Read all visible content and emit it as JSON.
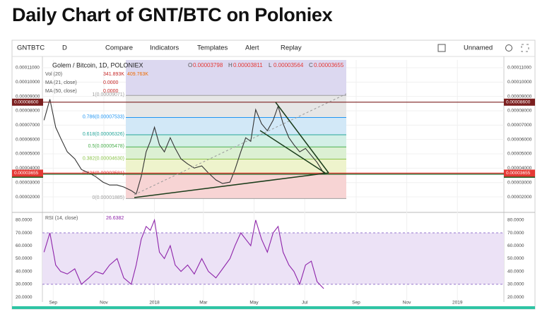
{
  "title": "Daily Chart of GNT/BTC on Poloniex",
  "toolbar": {
    "symbol": "GNTBTC",
    "interval": "D",
    "buttons": [
      "Compare",
      "Indicators",
      "Templates",
      "Alert",
      "Replay"
    ],
    "layout": "Unnamed"
  },
  "legend": {
    "name": "Golem / Bitcoin, 1D, POLONIEX",
    "ohlc": [
      {
        "label": "O",
        "value": "0.00003798"
      },
      {
        "label": "H",
        "value": "0.00003811"
      },
      {
        "label": "L",
        "value": "0.00003564"
      },
      {
        "label": "C",
        "value": "0.00003655"
      }
    ],
    "studies": [
      {
        "label": "Vol (20)",
        "values": [
          "341.893K",
          "409.763K"
        ]
      },
      {
        "label": "MA (21, close)",
        "values": [
          "0.0000"
        ]
      },
      {
        "label": "MA (50, close)",
        "values": [
          "0.0000"
        ]
      }
    ]
  },
  "chart_data": [
    {
      "type": "line",
      "x": [
        -11,
        -4,
        3,
        9,
        17,
        26,
        34,
        43,
        51,
        60,
        68,
        77,
        85,
        94,
        100,
        106,
        112,
        117,
        122,
        128,
        134,
        141,
        147,
        154,
        162,
        170,
        179,
        187,
        196,
        204,
        213,
        219,
        226,
        232,
        238,
        244,
        251,
        258,
        265,
        271,
        277,
        284,
        290,
        297,
        304,
        311,
        318,
        326
      ],
      "series": [
        {
          "name": "Golem / Bitcoin, 1D, POLONIEX",
          "color": "#333333",
          "values": [
            7.34e-05,
            8.8e-05,
            6.85e-05,
            6.1e-05,
            5.14e-05,
            4.65e-05,
            3.91e-05,
            3.67e-05,
            3.42e-05,
            3.03e-05,
            2.83e-05,
            2.83e-05,
            2.69e-05,
            2.44e-05,
            2.2e-05,
            3.42e-05,
            5.14e-05,
            5.87e-05,
            6.85e-05,
            5.63e-05,
            5.14e-05,
            6.12e-05,
            5.38e-05,
            4.65e-05,
            4.3e-05,
            4.01e-05,
            4.16e-05,
            3.67e-05,
            3.18e-05,
            2.93e-05,
            3.03e-05,
            3.91e-05,
            5.14e-05,
            6.12e-05,
            5.87e-05,
            8.08e-05,
            7.1e-05,
            6.61e-05,
            7.34e-05,
            8.32e-05,
            7.1e-05,
            6.12e-05,
            5.63e-05,
            5.14e-05,
            5.38e-05,
            4.89e-05,
            4.4e-05,
            3.655e-05
          ]
        }
      ],
      "xlim": [
        -13,
        543
      ],
      "xticks": [
        {
          "value": 0,
          "label": "Sep"
        },
        {
          "value": 61,
          "label": "Nov"
        },
        {
          "value": 122,
          "label": "2018"
        },
        {
          "value": 181,
          "label": "Mar"
        },
        {
          "value": 242,
          "label": "May"
        },
        {
          "value": 303,
          "label": "Jul"
        },
        {
          "value": 365,
          "label": "Sep"
        },
        {
          "value": 426,
          "label": "Nov"
        },
        {
          "value": 487,
          "label": "2019"
        }
      ],
      "ylim": [
        9.7e-06,
        0.0001154
      ],
      "yticks": [
        {
          "value": 0.00011,
          "label": "0.00011000"
        },
        {
          "value": 0.0001,
          "label": "0.00010000"
        },
        {
          "value": 9e-05,
          "label": "0.00009000"
        },
        {
          "value": 8e-05,
          "label": "0.00008000"
        },
        {
          "value": 7e-05,
          "label": "0.00007000"
        },
        {
          "value": 6e-05,
          "label": "0.00006000"
        },
        {
          "value": 5e-05,
          "label": "0.00005000"
        },
        {
          "value": 4e-05,
          "label": "0.00004000"
        },
        {
          "value": 3e-05,
          "label": "0.00003000"
        },
        {
          "value": 2e-05,
          "label": "0.00002000"
        }
      ],
      "grid": true,
      "fib_levels": [
        {
          "value": 9.071e-05,
          "label": "1(0.00009071)"
        },
        {
          "value": 7.533e-05,
          "label": "0.786(0.00007533)"
        },
        {
          "value": 6.326e-05,
          "label": "0.618(0.00006326)"
        },
        {
          "value": 5.478e-05,
          "label": "0.5(0.00005478)"
        },
        {
          "value": 4.63e-05,
          "label": "0.382(0.00004630)"
        },
        {
          "value": 3.581e-05,
          "label": "0.236(0.00003581)"
        },
        {
          "value": 1.885e-05,
          "label": "0(0.00001885)"
        }
      ],
      "fib_colors": [
        "#9e9e9e",
        "#2196f3",
        "#26a69a",
        "#4caf50",
        "#8bc34a",
        "#e53935",
        "#9e9e9e"
      ],
      "fib_fills": [
        "#e6e6e6",
        "#d2e8f7",
        "#d3efe6",
        "#dcf0d3",
        "#eef3cc",
        "#f7d4d4"
      ],
      "hlines": [
        {
          "value": 8.6e-05,
          "label": "0.00008600",
          "color": "#7b1f1f"
        },
        {
          "value": 3.58e-05,
          "label": "0.00003580",
          "color": "#1b5e20"
        }
      ],
      "last_price": {
        "value": 3.655e-05,
        "label": "0.00003655",
        "color": "#e53935"
      }
    },
    {
      "type": "line",
      "x": [
        -11,
        -4,
        3,
        9,
        17,
        26,
        34,
        43,
        51,
        60,
        68,
        77,
        85,
        94,
        100,
        106,
        112,
        117,
        122,
        128,
        134,
        141,
        147,
        154,
        162,
        170,
        179,
        187,
        196,
        204,
        213,
        219,
        226,
        232,
        238,
        244,
        251,
        258,
        265,
        271,
        277,
        284,
        290,
        297,
        304,
        311,
        318,
        326
      ],
      "series": [
        {
          "name": "RSI (14, close)",
          "color": "#8e24aa",
          "values": [
            55,
            70,
            45,
            40,
            38,
            42,
            30,
            35,
            40,
            38,
            45,
            50,
            35,
            30,
            45,
            65,
            75,
            72,
            80,
            55,
            50,
            60,
            45,
            40,
            45,
            38,
            50,
            40,
            35,
            42,
            50,
            60,
            70,
            65,
            60,
            80,
            65,
            55,
            70,
            75,
            55,
            45,
            40,
            30,
            45,
            48,
            32,
            26.6382
          ]
        }
      ],
      "xlim": [
        -13,
        543
      ],
      "ylim": [
        16.2,
        85.4
      ],
      "yticks": [
        {
          "value": 80,
          "label": "80.0000"
        },
        {
          "value": 70,
          "label": "70.0000"
        },
        {
          "value": 60,
          "label": "60.0000"
        },
        {
          "value": 50,
          "label": "50.0000"
        },
        {
          "value": 40,
          "label": "40.0000"
        },
        {
          "value": 30,
          "label": "30.0000"
        },
        {
          "value": 20,
          "label": "20.0000"
        }
      ],
      "band": [
        30,
        70
      ],
      "band_color": "#ece2f6"
    }
  ]
}
